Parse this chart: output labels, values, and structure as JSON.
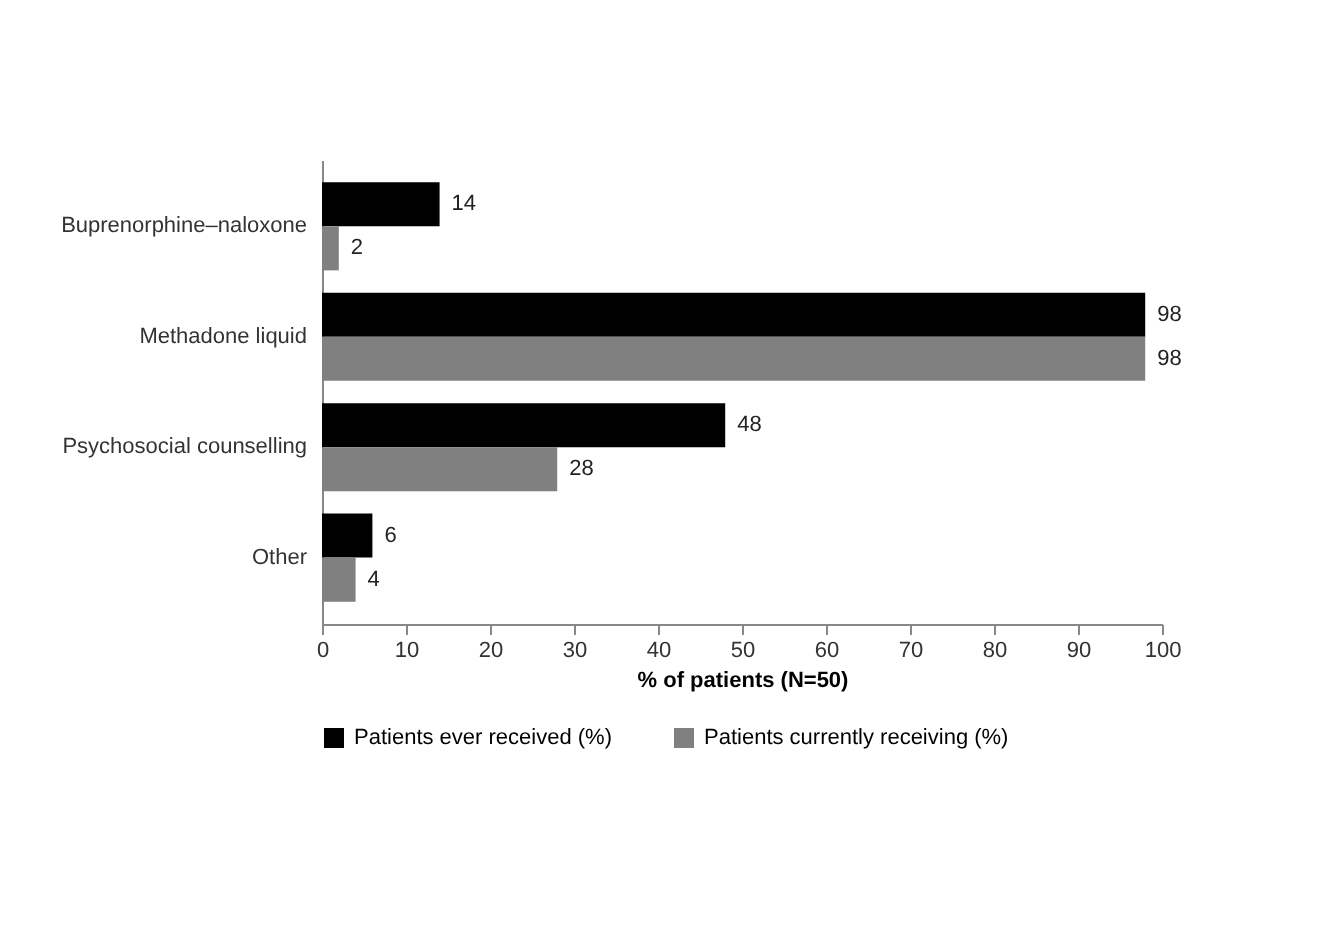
{
  "chart_data": {
    "type": "bar",
    "orientation": "horizontal",
    "categories": [
      "Buprenorphine–naloxone",
      "Methadone liquid",
      "Psychosocial counselling",
      "Other"
    ],
    "series": [
      {
        "name": "Patients ever received (%)",
        "color": "#000000",
        "values": [
          14,
          98,
          48,
          6
        ]
      },
      {
        "name": "Patients currently receiving (%)",
        "color": "#808080",
        "values": [
          2,
          98,
          28,
          4
        ]
      }
    ],
    "xlabel": "% of patients (N=50)",
    "xlim": [
      0,
      100
    ],
    "xticks": [
      0,
      10,
      20,
      30,
      40,
      50,
      60,
      70,
      80,
      90,
      100
    ],
    "data_labels": true,
    "legend": "bottom",
    "grid": false
  }
}
